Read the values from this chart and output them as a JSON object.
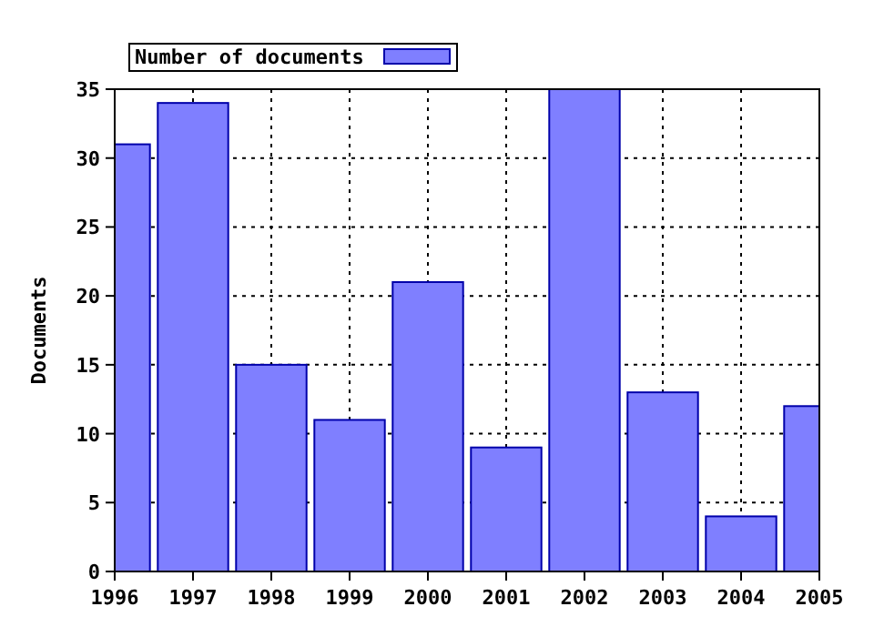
{
  "chart_data": {
    "type": "bar",
    "ylabel": "Documents",
    "x": [
      1996,
      1997,
      1998,
      1999,
      2000,
      2001,
      2002,
      2003,
      2004,
      2005
    ],
    "series": [
      {
        "name": "Number of documents",
        "color": "#7f7fff",
        "values": [
          31,
          34,
          15,
          11,
          21,
          9,
          35,
          13,
          4,
          12
        ]
      }
    ],
    "xlim": [
      1996,
      2005
    ],
    "xticks": [
      1996,
      1997,
      1998,
      1999,
      2000,
      2001,
      2002,
      2003,
      2004,
      2005
    ],
    "ylim": [
      0,
      35
    ],
    "yticks": [
      0,
      5,
      10,
      15,
      20,
      25,
      30,
      35
    ],
    "grid": true,
    "legend": "top left"
  }
}
